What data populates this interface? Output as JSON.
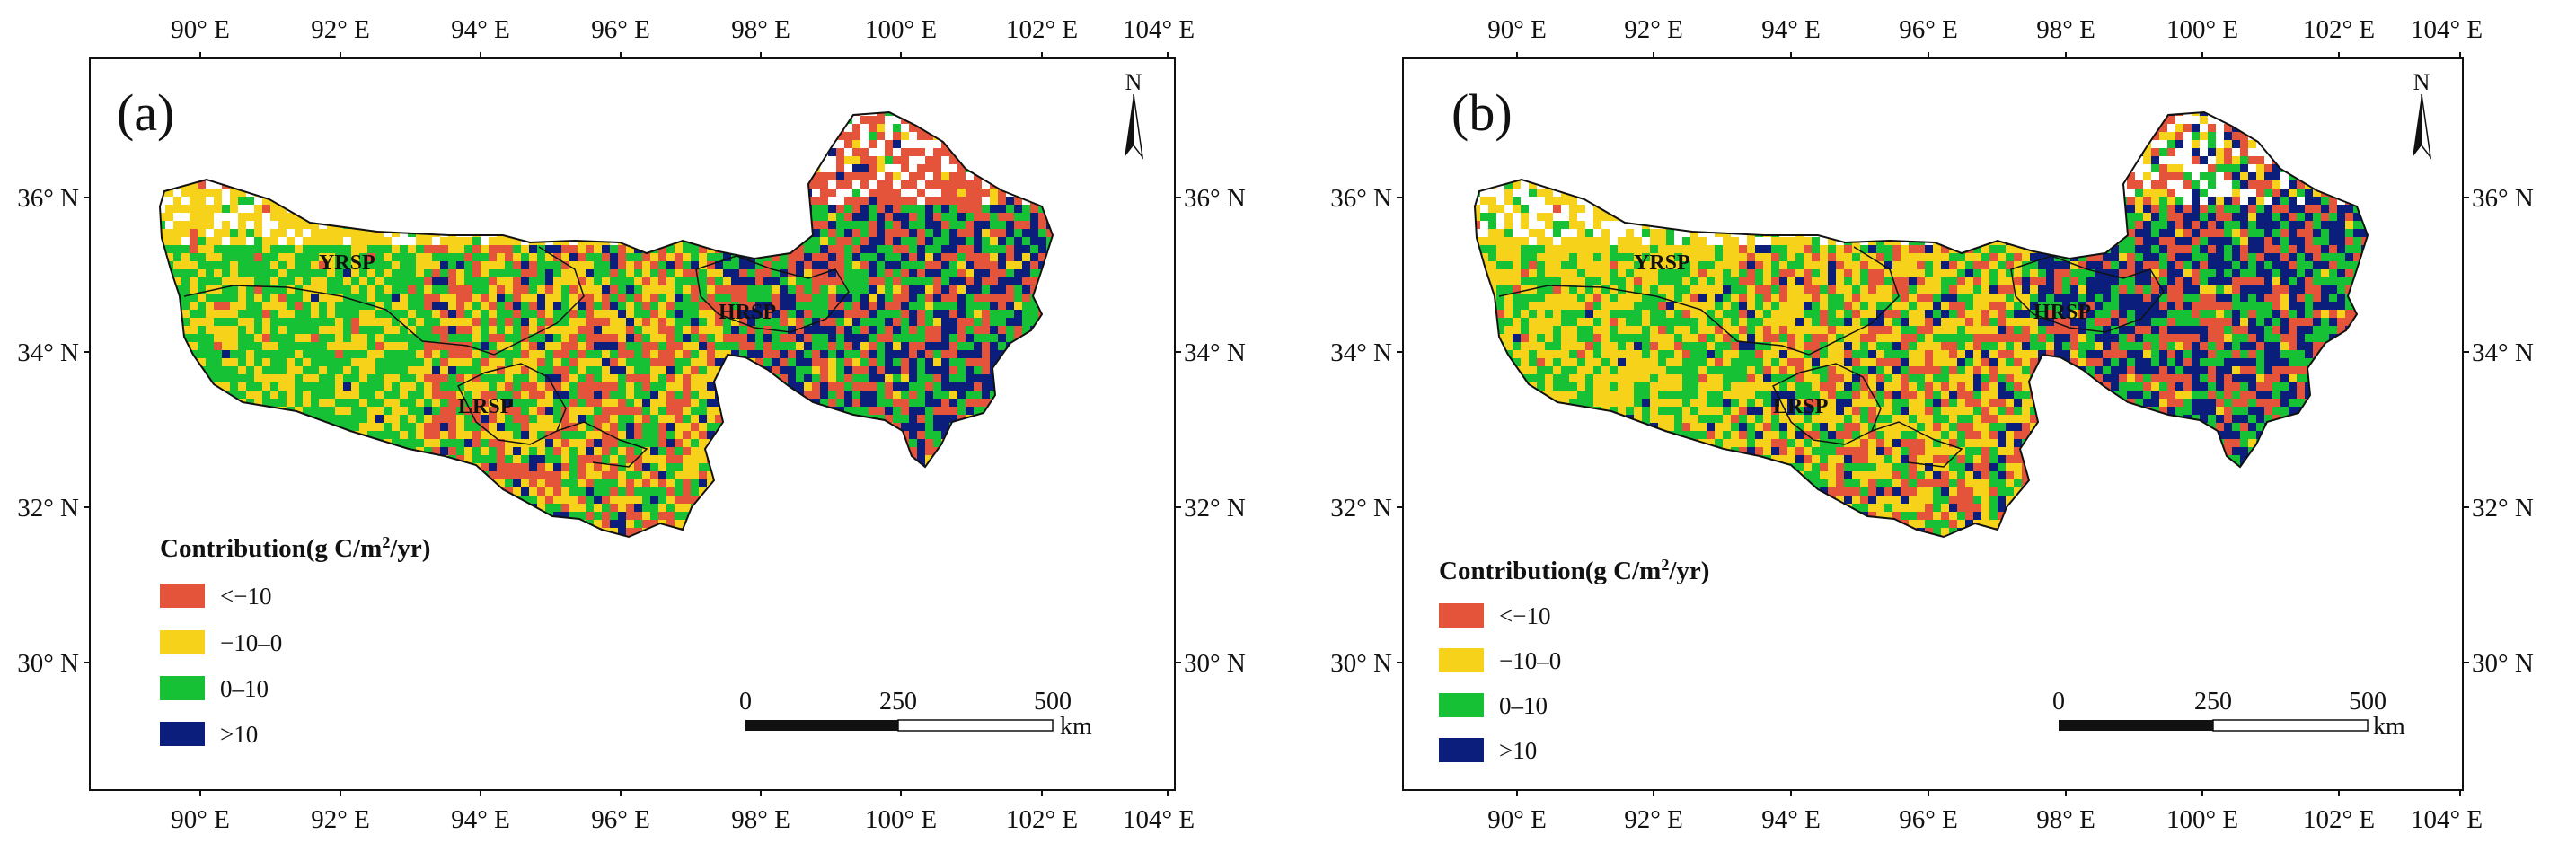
{
  "lon_labels": [
    "90° E",
    "92° E",
    "94° E",
    "96° E",
    "98° E",
    "100° E",
    "102° E",
    "104° E"
  ],
  "lat_labels": [
    "36° N",
    "34° N",
    "32° N",
    "30° N"
  ],
  "legend": {
    "title_prefix": "Contribution(g C/m",
    "title_sup": "2",
    "title_suffix": "/yr)",
    "classes": [
      {
        "label": "<−10",
        "color": "#e4543a"
      },
      {
        "label": "−10–0",
        "color": "#f7d21a"
      },
      {
        "label": "0–10",
        "color": "#17c136"
      },
      {
        "label": ">10",
        "color": "#0b1e7c"
      }
    ]
  },
  "regions": [
    "YRSP",
    "LRSP",
    "HRSP"
  ],
  "scale_bar": {
    "ticks": [
      "0",
      "250",
      "500"
    ],
    "unit": "km"
  },
  "north_label": "N",
  "panels": [
    {
      "id": "a",
      "label": "(a)"
    },
    {
      "id": "b",
      "label": "(b)"
    }
  ]
}
